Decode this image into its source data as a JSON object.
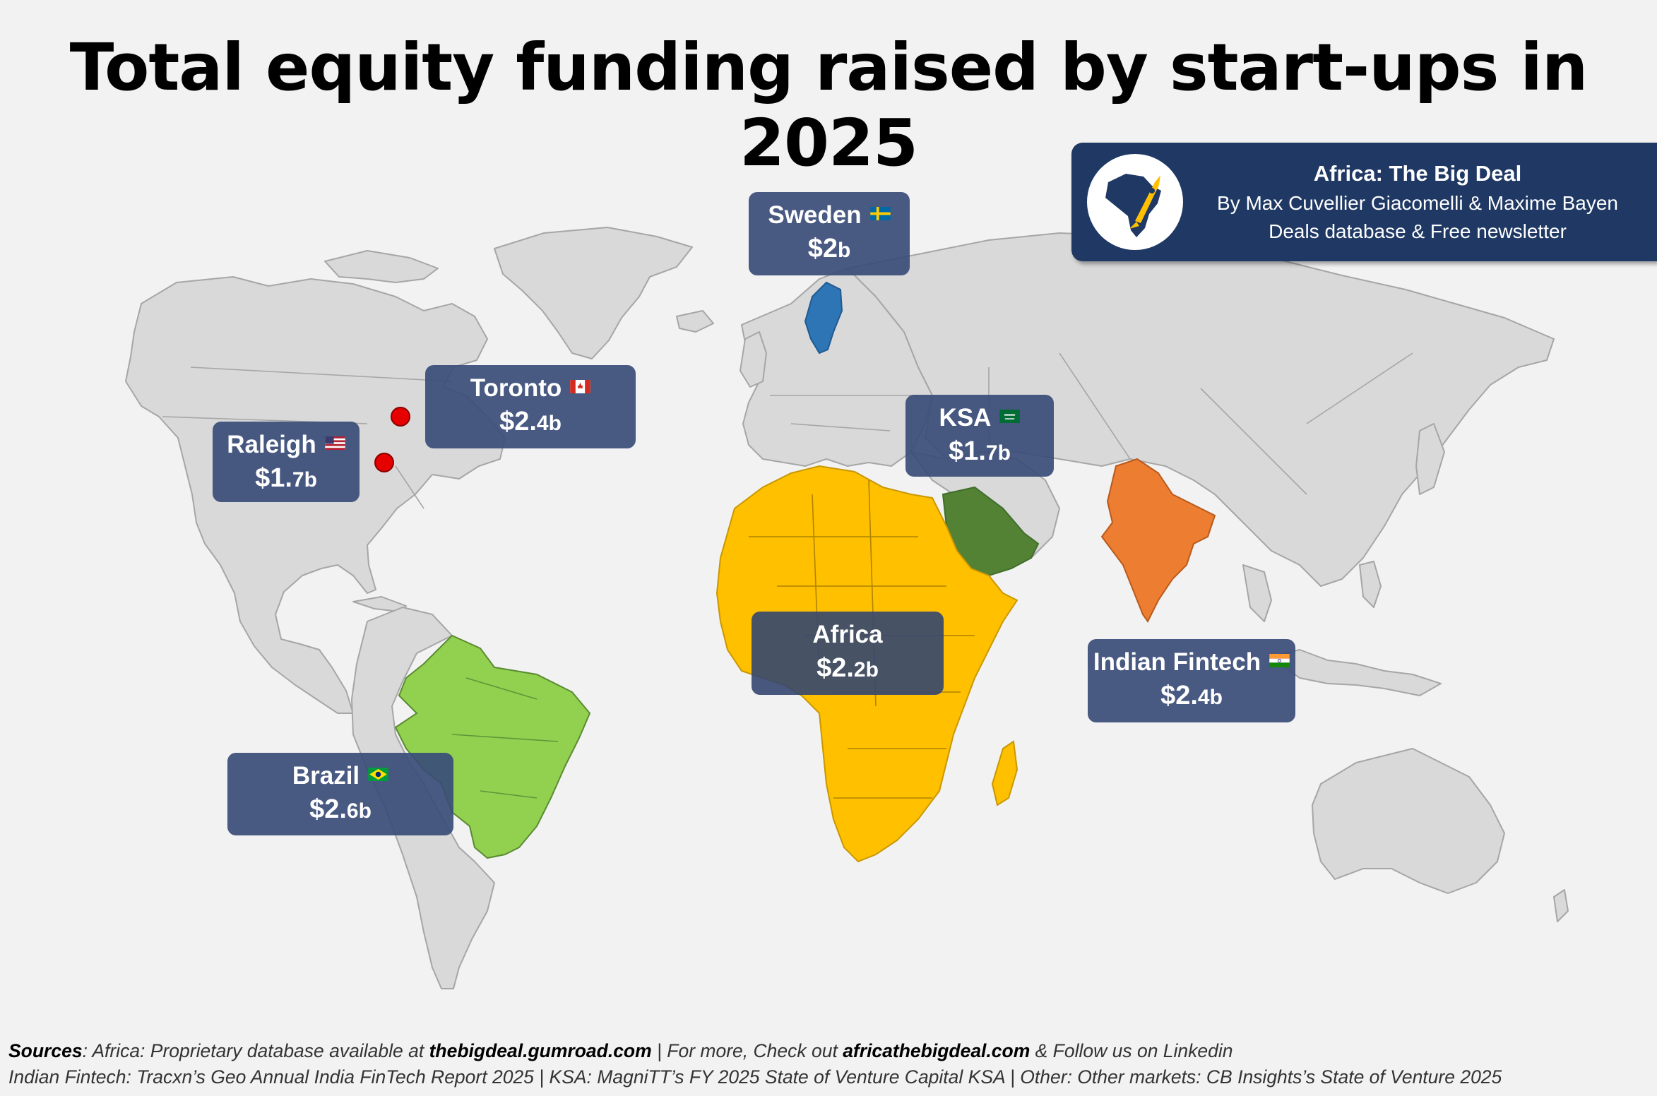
{
  "title": "Total equity funding raised by start-ups in 2025",
  "brand": {
    "line1": "Africa: The Big Deal",
    "line2": "By Max Cuvellier Giacomelli & Maxime Bayen",
    "line3": "Deals database & Free newsletter",
    "logo_icon": "africa-rocket-icon",
    "background_color": "#1f3864"
  },
  "labels": {
    "sweden": {
      "name": "Sweden",
      "flag": "sweden-flag-icon",
      "currency": "$",
      "amount_main": "2",
      "amount_unit": "b"
    },
    "toronto": {
      "name": "Toronto",
      "flag": "canada-flag-icon",
      "currency": "$",
      "amount_main": "2.",
      "amount_unit": "4b"
    },
    "raleigh": {
      "name": "Raleigh",
      "flag": "usa-flag-icon",
      "currency": "$",
      "amount_main": "1.",
      "amount_unit": "7b"
    },
    "ksa": {
      "name": "KSA",
      "flag": "saudi-flag-icon",
      "currency": "$",
      "amount_main": "1.",
      "amount_unit": "7b"
    },
    "africa": {
      "name": "Africa",
      "currency": "$",
      "amount_main": "2.",
      "amount_unit": "2b"
    },
    "indian_fintech": {
      "name": "Indian Fintech",
      "flag": "india-flag-icon",
      "currency": "$",
      "amount_main": "2.",
      "amount_unit": "4b"
    },
    "brazil": {
      "name": "Brazil",
      "flag": "brazil-flag-icon",
      "currency": "$",
      "amount_main": "2.",
      "amount_unit": "6b"
    }
  },
  "region_colors": {
    "africa": "#ffc000",
    "brazil": "#92d050",
    "india": "#ed7d31",
    "saudi_arabia": "#548235",
    "sweden": "#2e75b6",
    "other_land": "#d9d9d9",
    "city_marker": "#e60000"
  },
  "sources": {
    "label": "Sources",
    "line1_a": ": Africa: Proprietary database available at ",
    "line1_link1": "thebigdeal.gumroad.com",
    "line1_b": " | For more, Check out ",
    "line1_link2": "africathebigdeal.com",
    "line1_c": " & Follow us on Linkedin",
    "line2": "Indian Fintech: Tracxn’s Geo Annual India FinTech Report 2025 | KSA: MagniTT’s FY 2025 State of Venture Capital KSA | Other: Other markets: CB Insights’s State of Venture 2025"
  }
}
